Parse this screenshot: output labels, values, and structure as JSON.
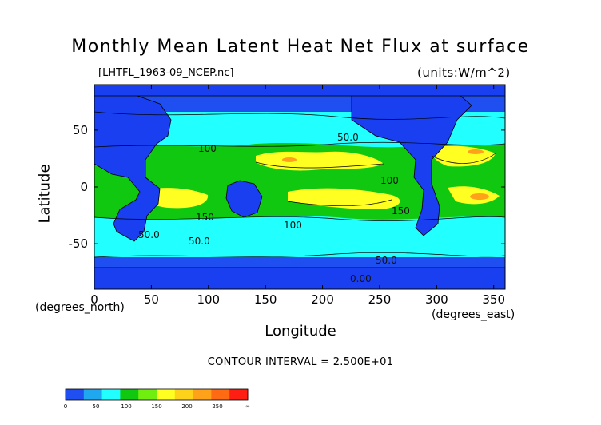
{
  "chart_data": {
    "type": "heatmap",
    "title": "Monthly Mean Latent Heat Net Flux at surface",
    "subtitle": "[LHTFL_1963-09_NCEP.nc]",
    "units_label": "(units:W/m^2)",
    "xlabel": "Longitude",
    "ylabel": "Latitude",
    "x_units_note": "(degrees_north)",
    "y_units_note": "(degrees_east)",
    "xlim": [
      0,
      360
    ],
    "ylim": [
      -90,
      90
    ],
    "x_ticks": [
      0,
      50,
      100,
      150,
      200,
      250,
      300,
      350
    ],
    "y_ticks": [
      -50,
      0,
      50
    ],
    "contour_interval_text": "CONTOUR INTERVAL = 2.500E+01",
    "contour_labels": [
      "0.00",
      "50.0",
      "100",
      "150",
      "50.0",
      "100",
      "150",
      "50.0",
      "100",
      "50.0"
    ],
    "colorbar": {
      "levels": [
        0,
        50,
        100,
        150,
        200,
        250
      ],
      "tick_labels": [
        "0",
        "50",
        "100",
        "150",
        "200",
        "250",
        "∞"
      ],
      "colors": [
        "#1f4ff0",
        "#1fa8f0",
        "#22ffff",
        "#10c810",
        "#70ee10",
        "#ffff22",
        "#ffd21a",
        "#ffa21a",
        "#ff6a12",
        "#ff1e12"
      ]
    }
  },
  "colors": {
    "land": "#1a3ff0",
    "ocean_low": "#1f4ff0",
    "ocean_mid": "#22ffff",
    "ocean_high": "#10c810",
    "peak_yellow": "#ffff22",
    "peak_orange": "#ffa21a",
    "peak_red": "#ff1e12"
  }
}
